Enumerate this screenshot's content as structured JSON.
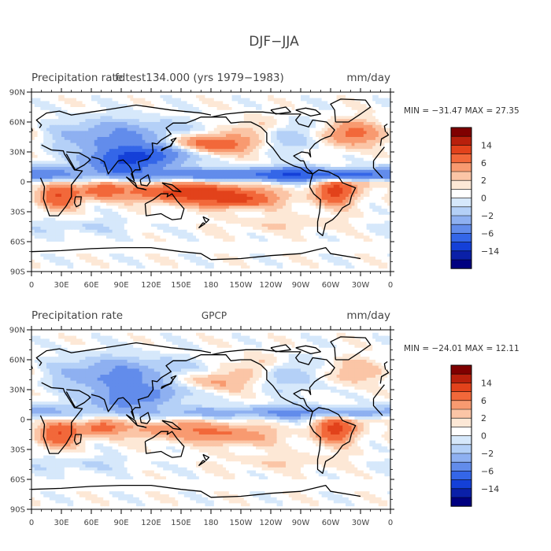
{
  "figure_title": "DJF−JJA",
  "lat_ticks": [
    "90N",
    "60N",
    "30N",
    "0",
    "30S",
    "60S",
    "90S"
  ],
  "lon_ticks": [
    "0",
    "30E",
    "60E",
    "90E",
    "120E",
    "150E",
    "180",
    "150W",
    "120W",
    "90W",
    "60W",
    "30W",
    "0"
  ],
  "colorbar_labels": [
    "14",
    "6",
    "2",
    "0",
    "−2",
    "−6",
    "−14"
  ],
  "colorbar_colors": [
    "#7f0000",
    "#b8200c",
    "#e2421b",
    "#f2683a",
    "#f89a70",
    "#fbc5a6",
    "#fde8d6",
    "#ffffff",
    "#d6e8fb",
    "#b4d0f7",
    "#8eb0f1",
    "#628ceb",
    "#3466e8",
    "#1440d8",
    "#0a20a8",
    "#000080"
  ],
  "chart_data": [
    {
      "type": "heatmap",
      "title": "Precipitation rate",
      "subtitle": "fdtest134.000 (yrs 1979−1983)",
      "units": "mm/day",
      "stats": "MIN = −31.47  MAX =  27.35",
      "min": -31.47,
      "max": 27.35,
      "x": {
        "range": [
          0,
          360
        ],
        "ticks": [
          "0",
          "30E",
          "60E",
          "90E",
          "120E",
          "150E",
          "180",
          "150W",
          "120W",
          "90W",
          "60W",
          "30W",
          "0"
        ]
      },
      "y": {
        "range": [
          -90,
          90
        ],
        "ticks": [
          "90N",
          "60N",
          "30N",
          "0",
          "30S",
          "60S",
          "90S"
        ]
      },
      "color_levels": [
        -14,
        -6,
        -2,
        0,
        2,
        6,
        14
      ]
    },
    {
      "type": "heatmap",
      "title": "Precipitation rate",
      "subtitle": "GPCP",
      "units": "mm/day",
      "stats": "MIN = −24.01  MAX =  12.11",
      "min": -24.01,
      "max": 12.11,
      "x": {
        "range": [
          0,
          360
        ],
        "ticks": [
          "0",
          "30E",
          "60E",
          "90E",
          "120E",
          "150E",
          "180",
          "150W",
          "120W",
          "90W",
          "60W",
          "30W",
          "0"
        ]
      },
      "y": {
        "range": [
          -90,
          90
        ],
        "ticks": [
          "90N",
          "60N",
          "30N",
          "0",
          "30S",
          "60S",
          "90S"
        ]
      },
      "color_levels": [
        -14,
        -6,
        -2,
        0,
        2,
        6,
        14
      ]
    }
  ]
}
